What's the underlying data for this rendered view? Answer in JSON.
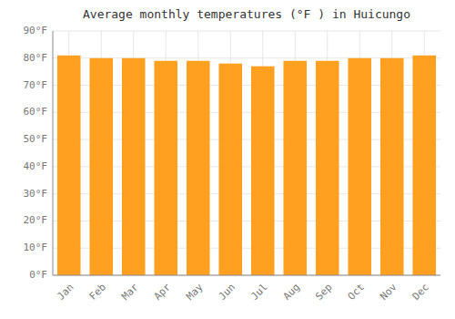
{
  "chart_data": {
    "type": "bar",
    "title": "Average monthly temperatures (°F ) in Huicungo",
    "categories": [
      "Jan",
      "Feb",
      "Mar",
      "Apr",
      "May",
      "Jun",
      "Jul",
      "Aug",
      "Sep",
      "Oct",
      "Nov",
      "Dec"
    ],
    "values": [
      81,
      80,
      80,
      79,
      79,
      78,
      77,
      79,
      79,
      80,
      80,
      81
    ],
    "color": "#FFA020",
    "ylim": [
      0,
      90
    ],
    "yticks": [
      {
        "value": 0,
        "label": "0°F"
      },
      {
        "value": 10,
        "label": "10°F"
      },
      {
        "value": 20,
        "label": "20°F"
      },
      {
        "value": 30,
        "label": "30°F"
      },
      {
        "value": 40,
        "label": "40°F"
      },
      {
        "value": 50,
        "label": "50°F"
      },
      {
        "value": 60,
        "label": "60°F"
      },
      {
        "value": 70,
        "label": "70°F"
      },
      {
        "value": 80,
        "label": "80°F"
      },
      {
        "value": 90,
        "label": "90°F"
      }
    ],
    "grid": true
  }
}
